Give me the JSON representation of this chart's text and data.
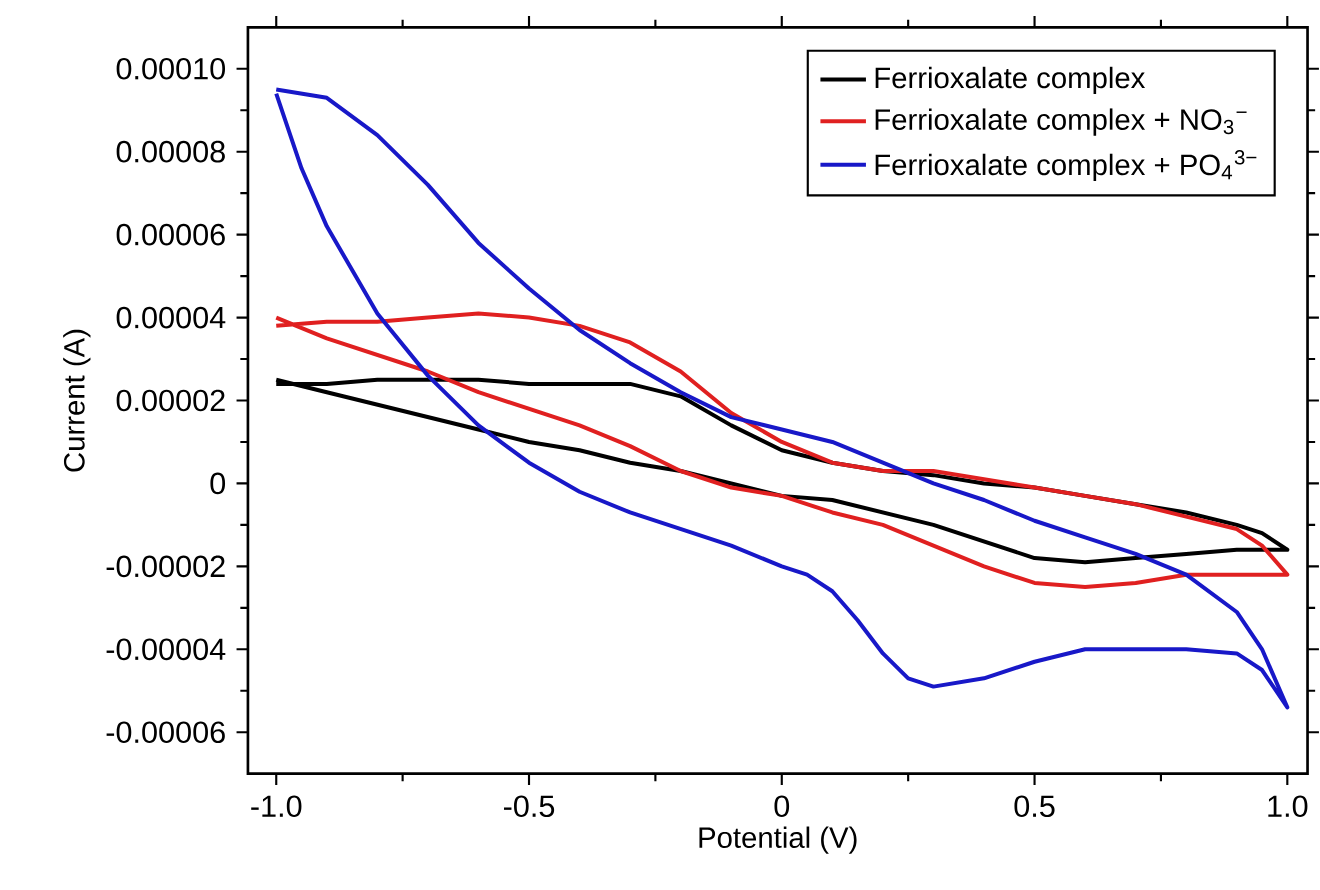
{
  "chart_data": {
    "type": "line",
    "xlabel": "Potential (V)",
    "ylabel": "Current (A)",
    "xlim": [
      -1.056,
      1.04
    ],
    "ylim": [
      -7e-05,
      0.00011
    ],
    "xticks": [
      {
        "value": -1,
        "label": "-1.0"
      },
      -0.5,
      0,
      0.5,
      {
        "value": 1,
        "label": "1.0"
      }
    ],
    "yticks": [
      {
        "value": -6e-05,
        "label": "-0.00006"
      },
      {
        "value": -4e-05,
        "label": "-0.00004"
      },
      {
        "value": -2e-05,
        "label": "-0.00002"
      },
      0,
      {
        "value": 2e-05,
        "label": "0.00002"
      },
      {
        "value": 4e-05,
        "label": "0.00004"
      },
      {
        "value": 6e-05,
        "label": "0.00006"
      },
      {
        "value": 8e-05,
        "label": "0.00008"
      },
      {
        "value": 0.0001,
        "label": "0.00010"
      }
    ],
    "legend": "top right",
    "grid": false,
    "marker": "none",
    "line_style": "solid",
    "series": [
      {
        "name": "Ferrioxalate complex",
        "color": "#000000",
        "x": [
          -1,
          -0.9,
          -0.8,
          -0.7,
          -0.6,
          -0.5,
          -0.4,
          -0.3,
          -0.2,
          -0.1,
          0,
          0.1,
          0.2,
          0.3,
          0.4,
          0.5,
          0.6,
          0.7,
          0.8,
          0.9,
          0.95,
          1,
          0.95,
          0.9,
          0.8,
          0.7,
          0.6,
          0.5,
          0.4,
          0.3,
          0.2,
          0.1,
          0,
          -0.1,
          -0.2,
          -0.3,
          -0.4,
          -0.5,
          -0.6,
          -0.7,
          -0.8,
          -0.9,
          -1
        ],
        "values": [
          2.4e-05,
          2.4e-05,
          2.5e-05,
          2.5e-05,
          2.5e-05,
          2.4e-05,
          2.4e-05,
          2.4e-05,
          2.1e-05,
          1.4e-05,
          8e-06,
          5e-06,
          3e-06,
          2e-06,
          0,
          -1e-06,
          -3e-06,
          -5e-06,
          -7e-06,
          -1e-05,
          -1.2e-05,
          -1.6e-05,
          -1.6e-05,
          -1.6e-05,
          -1.7e-05,
          -1.8e-05,
          -1.9e-05,
          -1.8e-05,
          -1.4e-05,
          -1e-05,
          -7e-06,
          -4e-06,
          -3e-06,
          0,
          3e-06,
          5e-06,
          8e-06,
          1e-05,
          1.3e-05,
          1.6e-05,
          1.9e-05,
          2.2e-05,
          2.5e-05
        ]
      },
      {
        "name": "Ferrioxalate complex + NO$_{3}$$^{−}$",
        "color": "#e02020",
        "x": [
          -1,
          -0.9,
          -0.8,
          -0.7,
          -0.6,
          -0.5,
          -0.4,
          -0.3,
          -0.2,
          -0.1,
          0,
          0.1,
          0.2,
          0.3,
          0.4,
          0.5,
          0.6,
          0.7,
          0.8,
          0.9,
          0.95,
          1,
          0.8,
          0.7,
          0.6,
          0.5,
          0.4,
          0.2,
          0.1,
          0,
          -0.1,
          -0.2,
          -0.3,
          -0.4,
          -0.6,
          -0.7,
          -0.9,
          -1
        ],
        "values": [
          3.8e-05,
          3.9e-05,
          3.9e-05,
          4e-05,
          4.1e-05,
          4e-05,
          3.8e-05,
          3.4e-05,
          2.7e-05,
          1.7e-05,
          1e-05,
          5e-06,
          3e-06,
          3e-06,
          1e-06,
          -1e-06,
          -3e-06,
          -5e-06,
          -8e-06,
          -1.1e-05,
          -1.5e-05,
          -2.2e-05,
          -2.2e-05,
          -2.4e-05,
          -2.5e-05,
          -2.4e-05,
          -2e-05,
          -1e-05,
          -7e-06,
          -3e-06,
          -1e-06,
          3e-06,
          9e-06,
          1.4e-05,
          2.2e-05,
          2.7e-05,
          3.5e-05,
          4e-05
        ]
      },
      {
        "name": "Ferrioxalate complex + PO$_{4}$$^{3−}$",
        "color": "#1818c8",
        "x": [
          -1,
          -0.9,
          -0.8,
          -0.7,
          -0.6,
          -0.5,
          -0.4,
          -0.3,
          -0.2,
          -0.1,
          0,
          0.1,
          0.2,
          0.3,
          0.4,
          0.5,
          0.6,
          0.7,
          0.8,
          0.9,
          0.95,
          1,
          0.95,
          0.9,
          0.8,
          0.6,
          0.5,
          0.4,
          0.3,
          0.25,
          0.2,
          0.15,
          0.1,
          0.05,
          0,
          -0.1,
          -0.3,
          -0.4,
          -0.5,
          -0.6,
          -0.7,
          -0.8,
          -0.9,
          -0.95,
          -1
        ],
        "values": [
          9.5e-05,
          9.3e-05,
          8.4e-05,
          7.2e-05,
          5.8e-05,
          4.7e-05,
          3.7e-05,
          2.9e-05,
          2.2e-05,
          1.6e-05,
          1.3e-05,
          1e-05,
          5e-06,
          0,
          -4e-06,
          -9e-06,
          -1.3e-05,
          -1.7e-05,
          -2.2e-05,
          -3.1e-05,
          -4e-05,
          -5.4e-05,
          -4.5e-05,
          -4.1e-05,
          -4e-05,
          -4e-05,
          -4.3e-05,
          -4.7e-05,
          -4.9e-05,
          -4.7e-05,
          -4.1e-05,
          -3.3e-05,
          -2.6e-05,
          -2.2e-05,
          -2e-05,
          -1.5e-05,
          -7e-06,
          -2e-06,
          5e-06,
          1.4e-05,
          2.6e-05,
          4.1e-05,
          6.2e-05,
          7.6e-05,
          9.4e-05
        ]
      }
    ]
  }
}
